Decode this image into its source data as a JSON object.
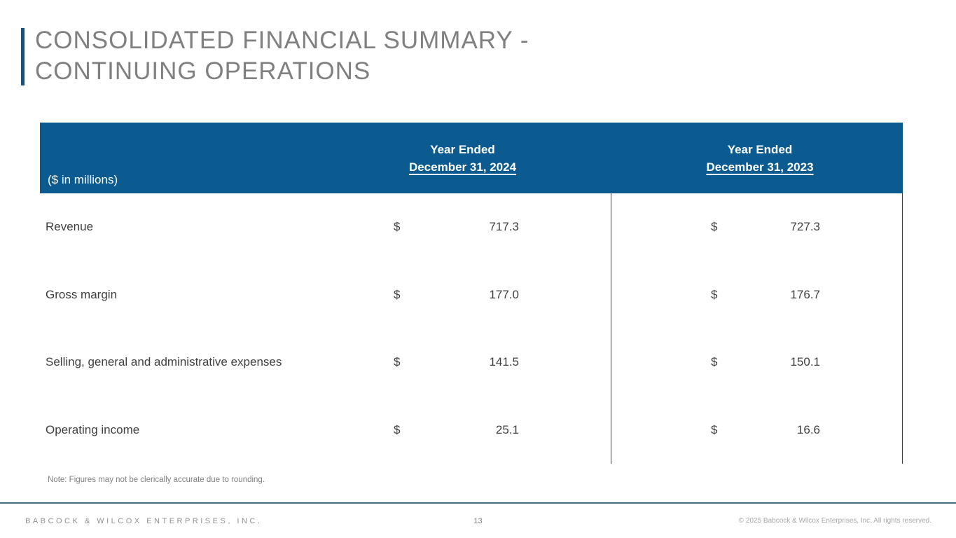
{
  "slide": {
    "title_line1": "CONSOLIDATED FINANCIAL SUMMARY -",
    "title_line2": "CONTINUING OPERATIONS"
  },
  "table": {
    "unit_label": "($ in millions)",
    "columns": [
      {
        "line1": "Year Ended",
        "line2": "December 31, 2024"
      },
      {
        "line1": "Year Ended",
        "line2": "December 31, 2023"
      }
    ],
    "rows": [
      {
        "label": "Revenue",
        "values": [
          {
            "cur": "$",
            "amount": "717.3"
          },
          {
            "cur": "$",
            "amount": "727.3"
          }
        ]
      },
      {
        "label": "Gross margin",
        "values": [
          {
            "cur": "$",
            "amount": "177.0"
          },
          {
            "cur": "$",
            "amount": "176.7"
          }
        ]
      },
      {
        "label": "Selling, general and administrative expenses",
        "values": [
          {
            "cur": "$",
            "amount": "141.5"
          },
          {
            "cur": "$",
            "amount": "150.1"
          }
        ]
      },
      {
        "label": "Operating income",
        "values": [
          {
            "cur": "$",
            "amount": "25.1"
          },
          {
            "cur": "$",
            "amount": "16.6"
          }
        ]
      }
    ]
  },
  "note": "Note: Figures may not be clerically accurate due to rounding.",
  "footer": {
    "company": "BABCOCK & WILCOX ENTERPRISES, INC.",
    "page_number": "13",
    "copyright": "© 2025 Babcock & Wilcox Enterprises, Inc. All rights reserved."
  },
  "colors": {
    "header_blue": "#0B5A90",
    "accent_bar_blue": "#1F4E79",
    "title_gray": "#808080",
    "body_text": "#3F3F3F",
    "footer_line_teal": "#456E7D"
  }
}
